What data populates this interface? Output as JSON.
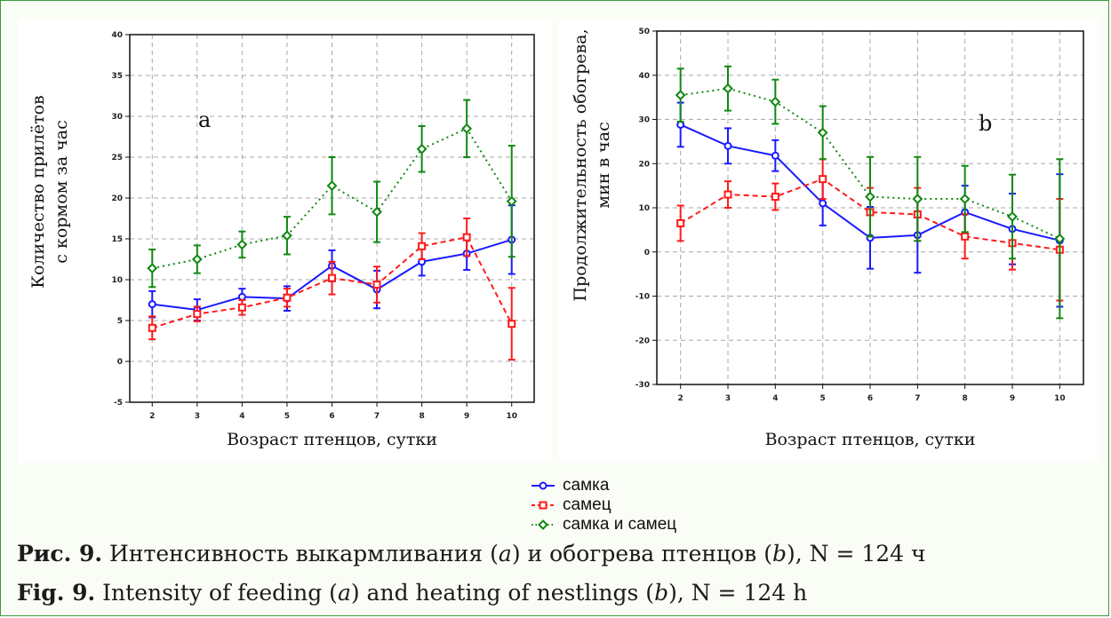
{
  "chart_data": [
    {
      "type": "line",
      "panel_letter": "a",
      "ylabel_lines": [
        "Количество прилётов",
        "с кормом за час"
      ],
      "xlabel": "Возраст птенцов, сутки",
      "x": [
        2,
        3,
        4,
        5,
        6,
        7,
        8,
        9,
        10
      ],
      "ylim": [
        -5,
        40
      ],
      "yticks": [
        -5,
        0,
        5,
        10,
        15,
        20,
        25,
        30,
        35,
        40
      ],
      "grid": true,
      "series": [
        {
          "name": "самка",
          "values": [
            7.0,
            6.3,
            7.9,
            7.7,
            11.7,
            8.8,
            12.2,
            13.2,
            14.9
          ],
          "err": [
            1.6,
            1.3,
            1.0,
            1.5,
            1.9,
            2.3,
            1.7,
            2.0,
            4.2
          ]
        },
        {
          "name": "самец",
          "values": [
            4.1,
            5.8,
            6.6,
            7.8,
            10.2,
            9.4,
            14.1,
            15.2,
            4.6
          ],
          "err": [
            1.4,
            0.9,
            0.9,
            1.1,
            2.0,
            2.2,
            1.6,
            2.3,
            4.4
          ]
        },
        {
          "name": "самка и самец",
          "values": [
            11.4,
            12.5,
            14.3,
            15.4,
            21.5,
            18.3,
            26.0,
            28.5,
            19.6
          ],
          "err": [
            2.3,
            1.7,
            1.6,
            2.3,
            3.5,
            3.7,
            2.8,
            3.5,
            6.8
          ]
        }
      ]
    },
    {
      "type": "line",
      "panel_letter": "b",
      "ylabel_lines": [
        "Продолжительность обогрева,",
        "мин в час"
      ],
      "xlabel": "Возраст птенцов, сутки",
      "x": [
        2,
        3,
        4,
        5,
        6,
        7,
        8,
        9,
        10
      ],
      "ylim": [
        -30,
        50
      ],
      "yticks": [
        -30,
        -20,
        -10,
        0,
        10,
        20,
        30,
        40,
        50
      ],
      "grid": true,
      "series": [
        {
          "name": "самка",
          "values": [
            28.8,
            24.0,
            21.8,
            11.0,
            3.2,
            3.8,
            9.0,
            5.2,
            2.6
          ],
          "err": [
            5.0,
            4.0,
            3.5,
            5.0,
            7.0,
            8.5,
            6.0,
            8.0,
            15.0
          ]
        },
        {
          "name": "самец",
          "values": [
            6.5,
            13.0,
            12.5,
            16.5,
            9.0,
            8.5,
            3.5,
            2.0,
            0.5
          ],
          "err": [
            4.0,
            3.0,
            3.0,
            4.5,
            5.5,
            6.0,
            5.0,
            6.0,
            11.5
          ]
        },
        {
          "name": "самка и самец",
          "values": [
            35.5,
            37.0,
            34.0,
            27.0,
            12.5,
            12.0,
            12.0,
            8.0,
            3.0
          ],
          "err": [
            6.0,
            5.0,
            5.0,
            6.0,
            9.0,
            9.5,
            7.5,
            9.5,
            18.0
          ]
        }
      ]
    }
  ],
  "legend": {
    "items": [
      {
        "label": "самка",
        "color": "#1a1aff",
        "marker": "circle"
      },
      {
        "label": "самец",
        "color": "#ff1a1a",
        "marker": "square"
      },
      {
        "label": "самка и самец",
        "color": "#118811",
        "marker": "diamond"
      }
    ]
  },
  "colors": {
    "female": "#1a1aff",
    "male": "#ff1a1a",
    "both": "#118811",
    "grid": "#a8a8a8"
  },
  "caption": {
    "ru_prefix": "Рис. 9.",
    "ru_t1": " Интенсивность выкармливания (",
    "ru_a": "a",
    "ru_t2": ") и обогрева птенцов (",
    "ru_b": "b",
    "ru_t3": "), N = 124 ч",
    "en_prefix": "Fig. 9.",
    "en_t1": " Intensity of feeding (",
    "en_a": "a",
    "en_t2": ") and heating of nestlings (",
    "en_b": "b",
    "en_t3": "), N = 124 h"
  }
}
